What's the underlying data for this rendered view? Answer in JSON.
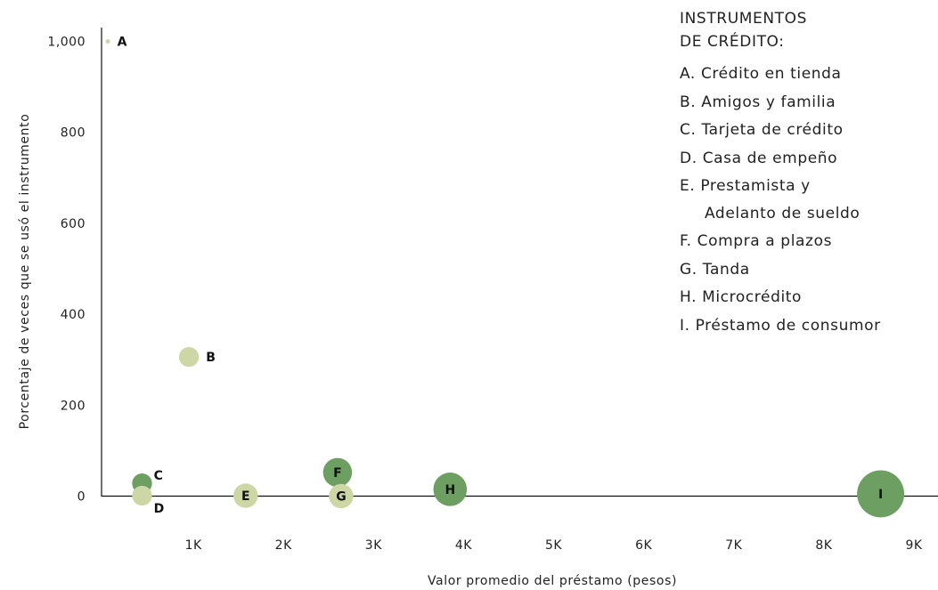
{
  "chart_data": {
    "type": "scatter",
    "title": "",
    "xlabel": "Valor promedio del préstamo (pesos)",
    "ylabel": "Porcentaje de veces que se usó el instrumento",
    "xlim": [
      0,
      9300
    ],
    "ylim": [
      -50,
      1040
    ],
    "x_ticks": [
      1000,
      2000,
      3000,
      4000,
      5000,
      6000,
      7000,
      8000,
      9000
    ],
    "x_tick_labels": [
      "1K",
      "2K",
      "3K",
      "4K",
      "5K",
      "6K",
      "7K",
      "8K",
      "9K"
    ],
    "y_ticks": [
      0,
      200,
      400,
      600,
      800,
      1000
    ],
    "y_tick_labels": [
      "0",
      "200",
      "400",
      "600",
      "800",
      "1,000"
    ],
    "grid": false,
    "legend_position": "top-right",
    "colors": {
      "light": "#cdd7a6",
      "dark": "#6d9f63"
    },
    "points": [
      {
        "label": "A",
        "x": 70,
        "y": 1000,
        "size": 1,
        "color": "light"
      },
      {
        "label": "B",
        "x": 970,
        "y": 306,
        "size": 3,
        "color": "light"
      },
      {
        "label": "C",
        "x": 450,
        "y": 28,
        "size": 3,
        "color": "dark"
      },
      {
        "label": "D",
        "x": 450,
        "y": 1,
        "size": 3,
        "color": "light"
      },
      {
        "label": "E",
        "x": 1600,
        "y": 1,
        "size": 4,
        "color": "light"
      },
      {
        "label": "F",
        "x": 2620,
        "y": 52,
        "size": 5,
        "color": "dark"
      },
      {
        "label": "G",
        "x": 2660,
        "y": 0,
        "size": 4,
        "color": "light"
      },
      {
        "label": "H",
        "x": 3870,
        "y": 15,
        "size": 6,
        "color": "dark"
      },
      {
        "label": "I",
        "x": 8650,
        "y": 5,
        "size": 9,
        "color": "dark"
      }
    ]
  },
  "legend": {
    "title_lines": [
      "INSTRUMENTOS",
      "DE CRÉDITO:"
    ],
    "items": [
      {
        "text": "A. Crédito en tienda"
      },
      {
        "text": "B. Amigos y familia"
      },
      {
        "text": "C. Tarjeta de crédito"
      },
      {
        "text": "D. Casa de empeño"
      },
      {
        "text": "E. Prestamista y",
        "continuation": "Adelanto de sueldo"
      },
      {
        "text": "F. Compra a plazos"
      },
      {
        "text": "G. Tanda"
      },
      {
        "text": "H. Microcrédito"
      },
      {
        "text": "I. Préstamo de consumor"
      }
    ]
  }
}
